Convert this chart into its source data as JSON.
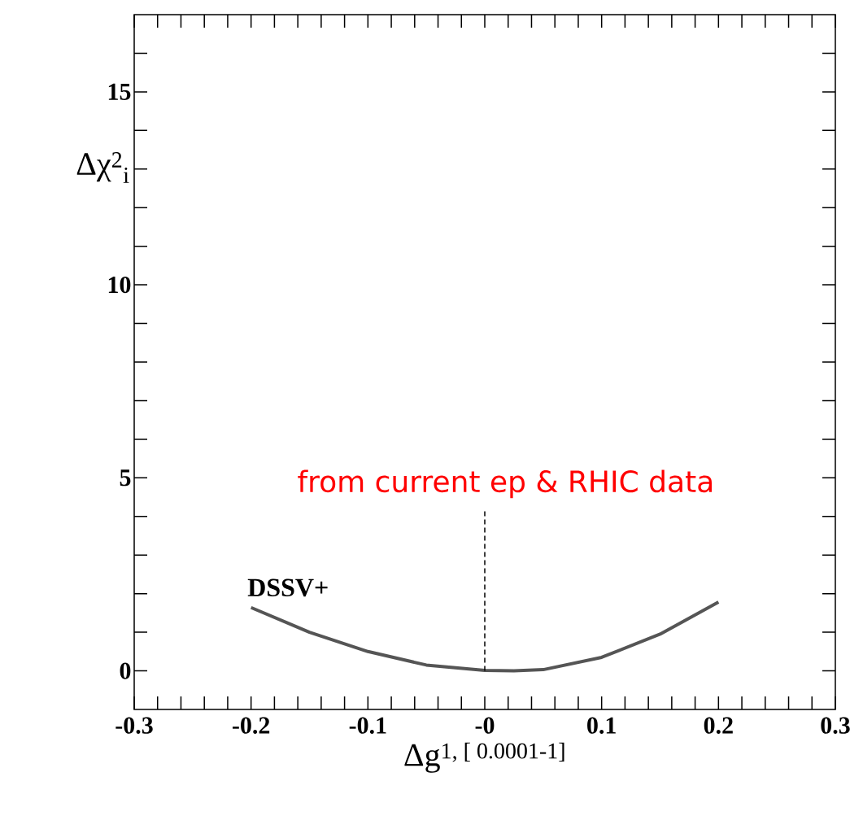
{
  "chart_data": {
    "type": "line",
    "xlabel": "Δg$^{1, [ 0.0001-1]}$",
    "ylabel": "Δχ$^{2}$$_{i}$",
    "annotations": [
      "from current ep & RHIC data"
    ],
    "xlim": [
      -0.3,
      0.3
    ],
    "ylim": [
      -1,
      17
    ],
    "xticks": [
      -0.3,
      {
        "value": -0.28,
        "label": null
      },
      {
        "value": -0.26,
        "label": null
      },
      {
        "value": -0.24,
        "label": null
      },
      {
        "value": -0.22,
        "label": null
      },
      -0.2,
      {
        "value": -0.18,
        "label": null
      },
      {
        "value": -0.16,
        "label": null
      },
      {
        "value": -0.14,
        "label": null
      },
      {
        "value": -0.12,
        "label": null
      },
      -0.1,
      {
        "value": -0.08,
        "label": null
      },
      {
        "value": -0.06,
        "label": null
      },
      {
        "value": -0.04,
        "label": null
      },
      {
        "value": -0.02,
        "label": null
      },
      {
        "value": 0,
        "label": "-0"
      },
      {
        "value": 0.02,
        "label": null
      },
      {
        "value": 0.04,
        "label": null
      },
      {
        "value": 0.06,
        "label": null
      },
      {
        "value": 0.08,
        "label": null
      },
      0.1,
      {
        "value": 0.12,
        "label": null
      },
      {
        "value": 0.14,
        "label": null
      },
      {
        "value": 0.16,
        "label": null
      },
      {
        "value": 0.18,
        "label": null
      },
      0.2,
      {
        "value": 0.22,
        "label": null
      },
      {
        "value": 0.24,
        "label": null
      },
      {
        "value": 0.26,
        "label": null
      },
      {
        "value": 0.28,
        "label": null
      },
      0.3
    ],
    "yticks": [
      0,
      {
        "value": 1,
        "label": null
      },
      {
        "value": 2,
        "label": null
      },
      {
        "value": 3,
        "label": null
      },
      {
        "value": 4,
        "label": null
      },
      5,
      {
        "value": 6,
        "label": null
      },
      {
        "value": 7,
        "label": null
      },
      {
        "value": 8,
        "label": null
      },
      {
        "value": 9,
        "label": null
      },
      10,
      {
        "value": 11,
        "label": null
      },
      {
        "value": 12,
        "label": null
      },
      {
        "value": 13,
        "label": null
      },
      {
        "value": 14,
        "label": null
      },
      15,
      {
        "value": 16,
        "label": null
      }
    ],
    "marker": "none",
    "series": [
      {
        "name": "DSSV+",
        "color": "#555555",
        "line_style": "solid",
        "x": [
          -0.2,
          -0.15,
          -0.1,
          -0.05,
          0,
          0.025,
          0.05,
          0.1,
          0.15,
          0.2
        ],
        "values": [
          1.64,
          1.0,
          0.5,
          0.15,
          0.01,
          0,
          0.03,
          0.35,
          0.95,
          1.78
        ]
      },
      {
        "color": "#000000",
        "line_style": "dashed",
        "x": [
          0,
          0
        ],
        "values": [
          0,
          4.2
        ]
      }
    ]
  }
}
